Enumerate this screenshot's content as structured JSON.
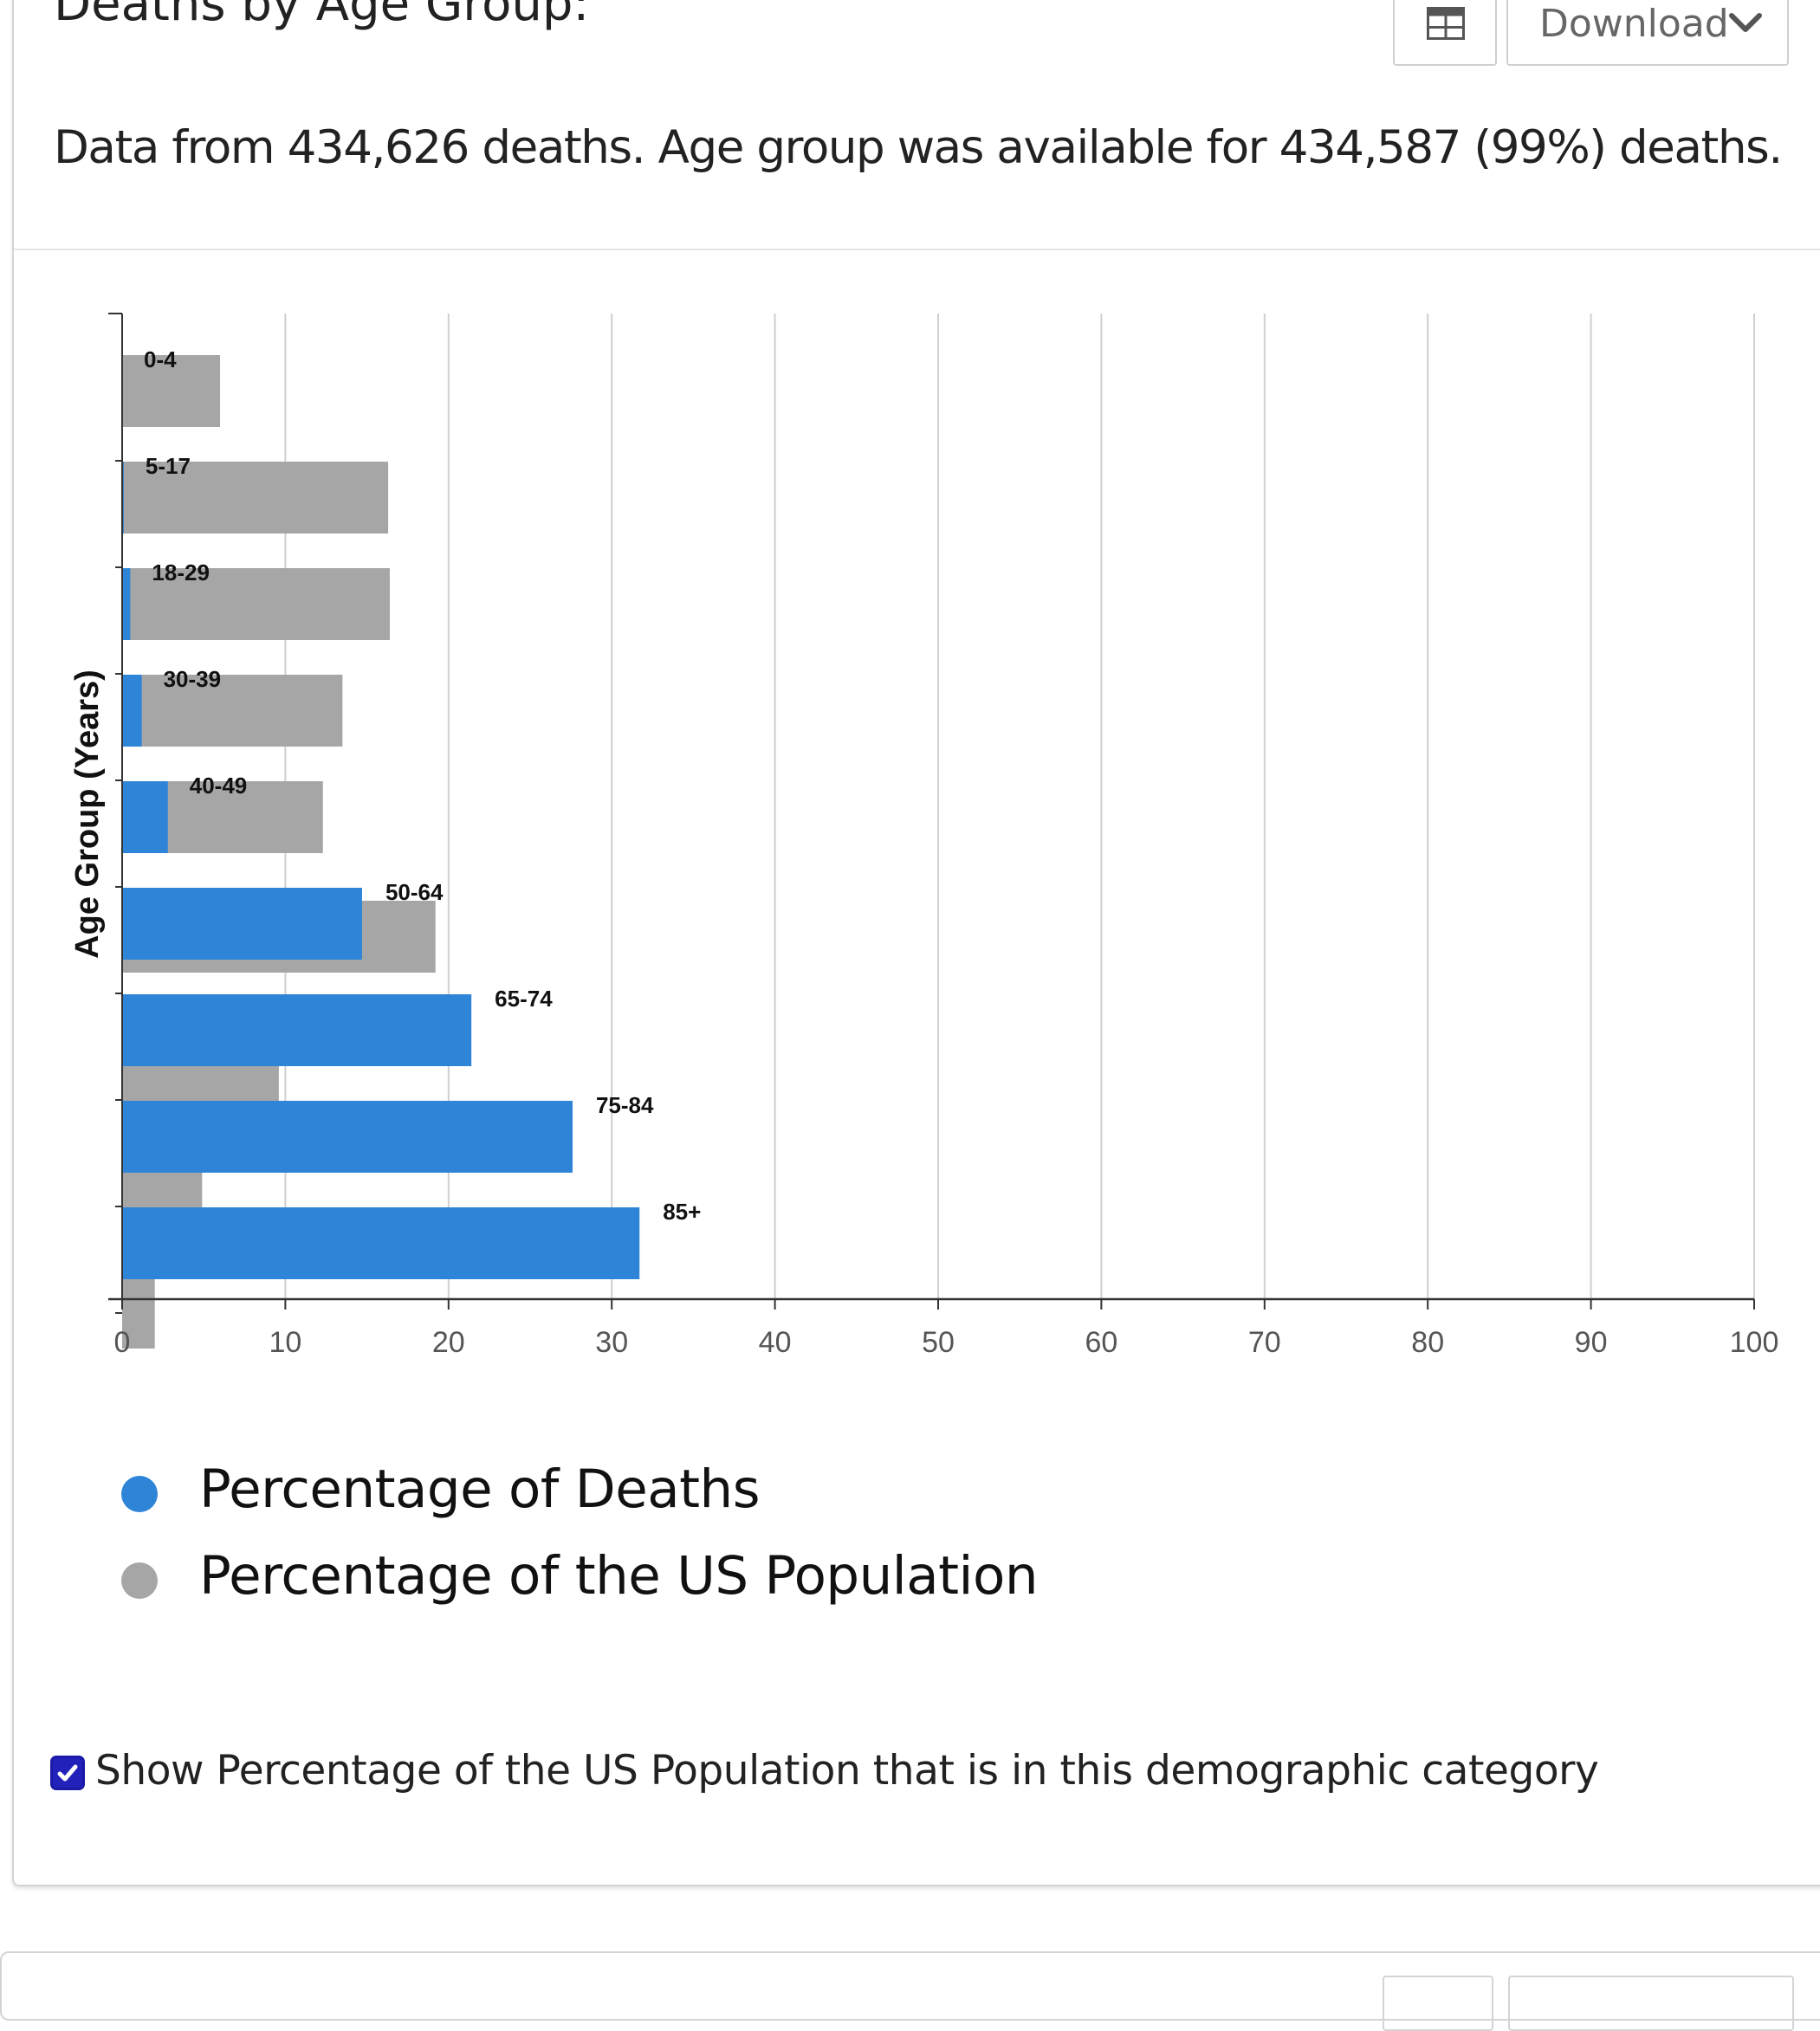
{
  "panel": {
    "title": "Deaths by Age Group:",
    "table_button_icon": "table-grid-icon",
    "download_label": "Download",
    "download_icon": "chevron-down-icon",
    "summary": "Data from 434,626 deaths. Age group was available for 434,587 (99%) deaths.",
    "checkbox_checked": true,
    "checkbox_label": "Show Percentage of the US Population that is in this demographic category"
  },
  "colors": {
    "deaths": "#2e84d6",
    "population": "#a6a6a6",
    "checkbox": "#2222bb"
  },
  "chart_data": {
    "type": "bar",
    "orientation": "horizontal",
    "categories": [
      "0-4",
      "5-17",
      "18-29",
      "30-39",
      "40-49",
      "50-64",
      "65-74",
      "75-84",
      "85+"
    ],
    "series": [
      {
        "name": "Percentage of Deaths",
        "values": [
          0.0,
          0.1,
          0.5,
          1.2,
          2.8,
          14.7,
          21.4,
          27.6,
          31.7
        ]
      },
      {
        "name": "Percentage of the US Population",
        "values": [
          6.0,
          16.3,
          16.4,
          13.5,
          12.3,
          19.2,
          9.6,
          4.9,
          2.0
        ]
      }
    ],
    "xlabel": "",
    "ylabel": "Age Group (Years)",
    "xlim": [
      0,
      100
    ],
    "xticks": [
      0,
      10,
      20,
      30,
      40,
      50,
      60,
      70,
      80,
      90,
      100
    ],
    "grid": "vertical",
    "legend_position": "bottom"
  }
}
